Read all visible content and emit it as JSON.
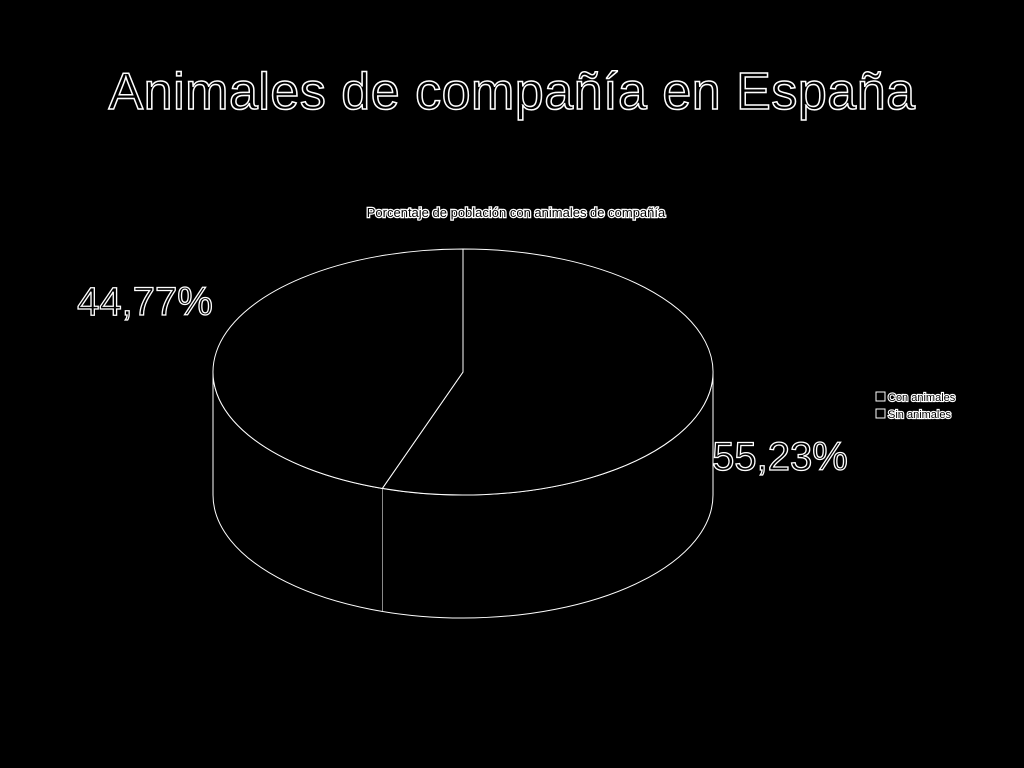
{
  "slide": {
    "title": "Animales de compañía en España"
  },
  "chart_data": {
    "type": "pie",
    "title": "Porcentaje de población con animales de compañía",
    "categories": [
      "Con animales",
      "Sin animales"
    ],
    "values": [
      55.23,
      44.77
    ],
    "data_labels": [
      "55,23%",
      "44,77%"
    ],
    "legend_position": "right",
    "style": "3d"
  },
  "colors": {
    "background": "#000000",
    "outline": "#ffffff"
  }
}
